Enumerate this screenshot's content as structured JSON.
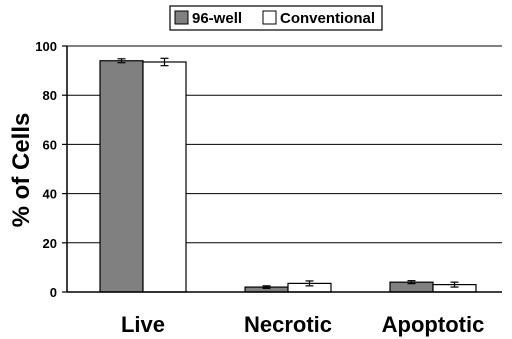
{
  "chart_data": {
    "type": "bar",
    "categories": [
      "Live",
      "Necrotic",
      "Apoptotic"
    ],
    "series": [
      {
        "name": "96-well",
        "values": [
          94,
          2,
          4
        ],
        "errors": [
          0.8,
          0.5,
          0.6
        ],
        "color": "#808080"
      },
      {
        "name": "Conventional",
        "values": [
          93.5,
          3.5,
          3
        ],
        "errors": [
          1.5,
          1.0,
          1.0
        ],
        "color": "#ffffff"
      }
    ],
    "ylabel": "% of Cells",
    "ylim": [
      0,
      100
    ],
    "yticks": [
      "0",
      "20",
      "40",
      "60",
      "80",
      "100"
    ],
    "grid": true,
    "legend": "top"
  }
}
